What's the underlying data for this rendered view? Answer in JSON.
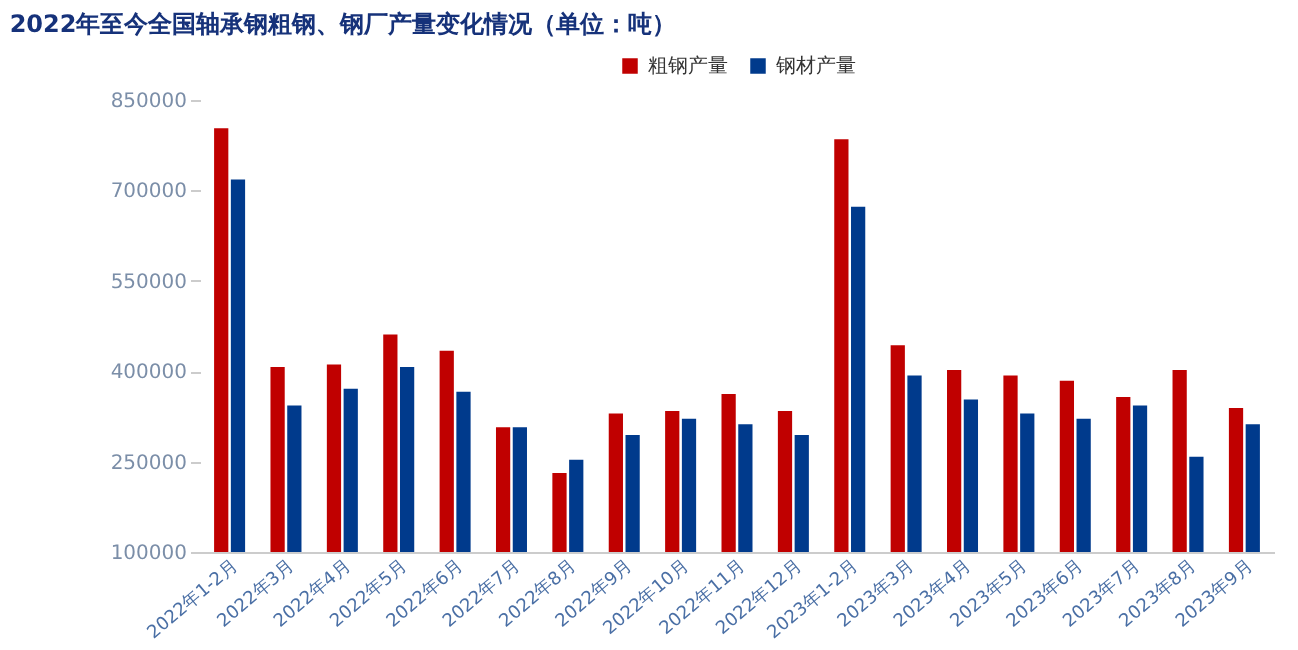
{
  "chart_data": {
    "type": "bar",
    "title": "2022年至今全国轴承钢粗钢、钢厂产量变化情况（单位：吨）",
    "categories": [
      "2022年1-2月",
      "2022年3月",
      "2022年4月",
      "2022年5月",
      "2022年6月",
      "2022年7月",
      "2022年8月",
      "2022年9月",
      "2022年10月",
      "2022年11月",
      "2022年12月",
      "2023年1-2月",
      "2023年3月",
      "2023年4月",
      "2023年5月",
      "2023年6月",
      "2023年7月",
      "2023年8月",
      "2023年9月"
    ],
    "series": [
      {
        "name": "粗钢产量",
        "color": "#c00000",
        "values": [
          803000,
          407000,
          411000,
          461000,
          434000,
          307000,
          231000,
          330000,
          334000,
          362000,
          334000,
          785000,
          443000,
          402000,
          393000,
          384000,
          357000,
          402000,
          339000
        ]
      },
      {
        "name": "钢材产量",
        "color": "#003a8c",
        "values": [
          718000,
          343000,
          371000,
          407000,
          366000,
          307000,
          253000,
          294000,
          321000,
          312000,
          294000,
          673000,
          393000,
          353000,
          330000,
          321000,
          343000,
          258000,
          312000
        ]
      }
    ],
    "ylim": [
      100000,
      850000
    ],
    "yticks": [
      100000,
      250000,
      400000,
      550000,
      700000,
      850000
    ],
    "legend": "top",
    "grid": false
  }
}
